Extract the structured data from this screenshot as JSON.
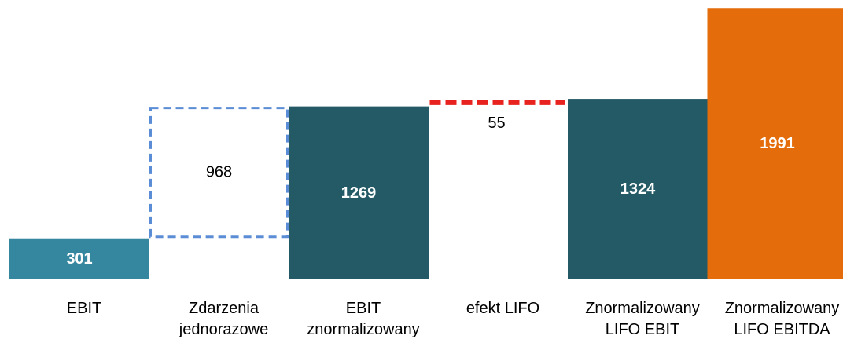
{
  "chart_data": {
    "type": "bar",
    "subtype": "waterfall",
    "categories": [
      [
        "EBIT"
      ],
      [
        "Zdarzenia",
        "jednorazowe"
      ],
      [
        "EBIT",
        "znormalizowany"
      ],
      [
        "efekt LIFO"
      ],
      [
        "Znormalizowany",
        "LIFO EBIT"
      ],
      [
        "Znormalizowany",
        "LIFO EBITDA"
      ]
    ],
    "bars": [
      {
        "label": "301",
        "base": 0,
        "value": 301,
        "kind": "total",
        "color": "#35879F"
      },
      {
        "label": "968",
        "base": 301,
        "value": 968,
        "kind": "increase",
        "color": "#5B8DD6"
      },
      {
        "label": "1269",
        "base": 0,
        "value": 1269,
        "kind": "total",
        "color": "#245A66"
      },
      {
        "label": "55",
        "base": 1269,
        "value": 55,
        "kind": "increase",
        "color": "#E8231F"
      },
      {
        "label": "1324",
        "base": 0,
        "value": 1324,
        "kind": "total",
        "color": "#245A66"
      },
      {
        "label": "1991",
        "base": 0,
        "value": 1991,
        "kind": "total",
        "color": "#E46C0A"
      }
    ],
    "ylim": [
      0,
      2050
    ],
    "grid": false,
    "legend": "none",
    "title": "",
    "xlabel": "",
    "ylabel": ""
  }
}
